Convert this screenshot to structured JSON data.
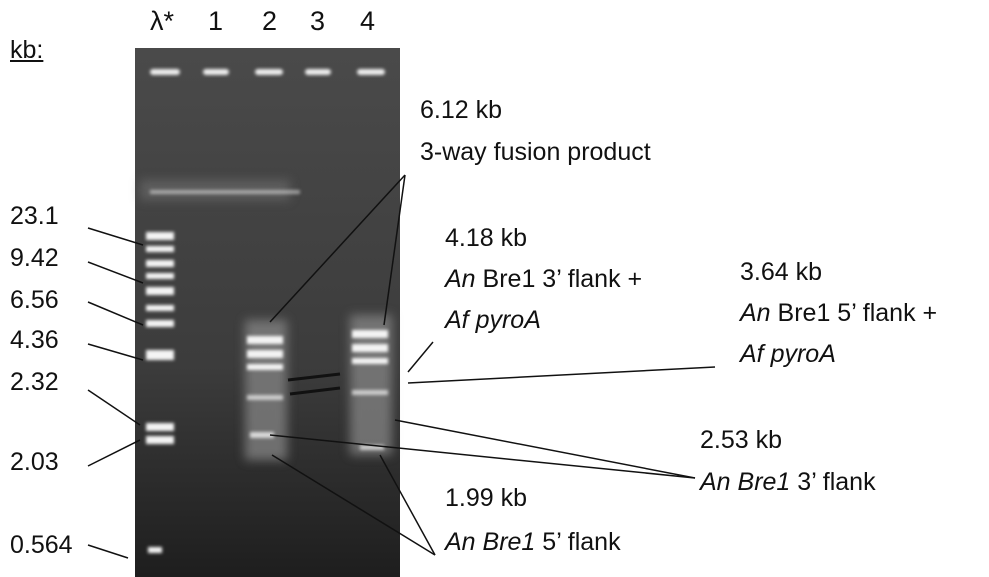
{
  "axis_label": "kb:",
  "lanes": [
    "λ*",
    "1",
    "2",
    "3",
    "4"
  ],
  "ladder": [
    "23.1",
    "9.42",
    "6.56",
    "4.36",
    "2.32",
    "2.03",
    "0.564"
  ],
  "annotations": [
    {
      "lines": [
        [
          {
            "text": "6.12 kb",
            "italic": false
          }
        ],
        [
          {
            "text": "3-way fusion product",
            "italic": false
          }
        ]
      ]
    },
    {
      "lines": [
        [
          {
            "text": "4.18 kb",
            "italic": false
          }
        ],
        [
          {
            "text": "An",
            "italic": true
          },
          {
            "text": " Bre1 3’ flank +",
            "italic": false
          }
        ],
        [
          {
            "text": "Af pyroA",
            "italic": true
          }
        ]
      ]
    },
    {
      "lines": [
        [
          {
            "text": "3.64 kb",
            "italic": false
          }
        ],
        [
          {
            "text": "An",
            "italic": true
          },
          {
            "text": " Bre1 5’ flank +",
            "italic": false
          }
        ],
        [
          {
            "text": "Af pyroA",
            "italic": true
          }
        ]
      ]
    },
    {
      "lines": [
        [
          {
            "text": "2.53 kb",
            "italic": false
          }
        ],
        [
          {
            "text": "An Bre1",
            "italic": true
          },
          {
            "text": " 3’ flank",
            "italic": false
          }
        ]
      ]
    },
    {
      "lines": [
        [
          {
            "text": "1.99 kb",
            "italic": false
          }
        ],
        [
          {
            "text": "An Bre1",
            "italic": true
          },
          {
            "text": " 5’ flank",
            "italic": false
          }
        ]
      ]
    }
  ]
}
